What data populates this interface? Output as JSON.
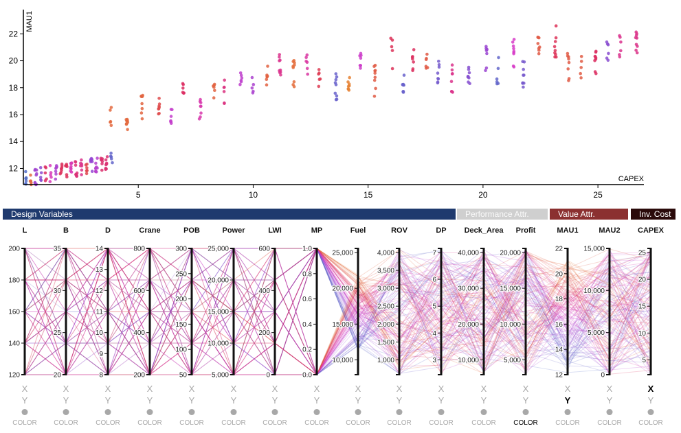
{
  "scatter": {
    "x_label": "CAPEX",
    "y_label": "MAU1",
    "x_ticks": [
      "5",
      "10",
      "15",
      "20",
      "25"
    ],
    "y_ticks": [
      "12",
      "14",
      "16",
      "18",
      "20",
      "22"
    ],
    "x_domain": [
      0,
      27
    ],
    "y_domain": [
      10.8,
      23.8
    ]
  },
  "groups": [
    {
      "label": "Design Variables",
      "color": "#1f3a6e"
    },
    {
      "label": "Performance Attr.",
      "color": "#cfcfcf"
    },
    {
      "label": "Value Attr.",
      "color": "#8b3030"
    },
    {
      "label": "Inv. Cost",
      "color": "#2a0a0a"
    }
  ],
  "dimensions": [
    {
      "name": "L",
      "ticks": [
        "200",
        "180",
        "160",
        "140",
        "120"
      ]
    },
    {
      "name": "B",
      "ticks": [
        "35",
        "30",
        "25",
        "20"
      ]
    },
    {
      "name": "D",
      "ticks": [
        "14",
        "13",
        "12",
        "11",
        "10",
        "9",
        "8"
      ]
    },
    {
      "name": "Crane",
      "ticks": [
        "800",
        "600",
        "400",
        "200"
      ]
    },
    {
      "name": "POB",
      "ticks": [
        "300",
        "250",
        "200",
        "150",
        "100",
        "50"
      ]
    },
    {
      "name": "Power",
      "ticks": [
        "25,000",
        "20,000",
        "15,000",
        "10,000",
        "5,000"
      ]
    },
    {
      "name": "LWI",
      "ticks": [
        "600",
        "400",
        "200",
        "0"
      ]
    },
    {
      "name": "MP",
      "ticks": [
        "1.0",
        "0.8",
        "0.6",
        "0.4",
        "0.2",
        "0.0"
      ]
    },
    {
      "name": "Fuel",
      "ticks": [
        "25,000",
        "20,000",
        "15,000",
        "10,000"
      ]
    },
    {
      "name": "ROV",
      "ticks": [
        "4,000",
        "3,500",
        "3,000",
        "2,500",
        "2,000",
        "1,500",
        "1,000"
      ]
    },
    {
      "name": "DP",
      "ticks": [
        "7",
        "6",
        "5",
        "4",
        "3"
      ]
    },
    {
      "name": "Deck_Area",
      "ticks": [
        "40,000",
        "30,000",
        "20,000",
        "10,000"
      ]
    },
    {
      "name": "Profit",
      "ticks": [
        "20,000",
        "15,000",
        "10,000",
        "5,000"
      ]
    },
    {
      "name": "MAU1",
      "ticks": [
        "22",
        "20",
        "18",
        "16",
        "14",
        "12"
      ]
    },
    {
      "name": "MAU2",
      "ticks": [
        "15,000",
        "10,000",
        "5,000",
        "0"
      ]
    },
    {
      "name": "CAPEX",
      "ticks": [
        "25",
        "20",
        "15",
        "10",
        "5"
      ]
    }
  ],
  "controls": {
    "x": "X",
    "y": "Y",
    "color": "COLOR",
    "x_active": "CAPEX",
    "y_active": "MAU1",
    "color_active": "Profit"
  }
}
